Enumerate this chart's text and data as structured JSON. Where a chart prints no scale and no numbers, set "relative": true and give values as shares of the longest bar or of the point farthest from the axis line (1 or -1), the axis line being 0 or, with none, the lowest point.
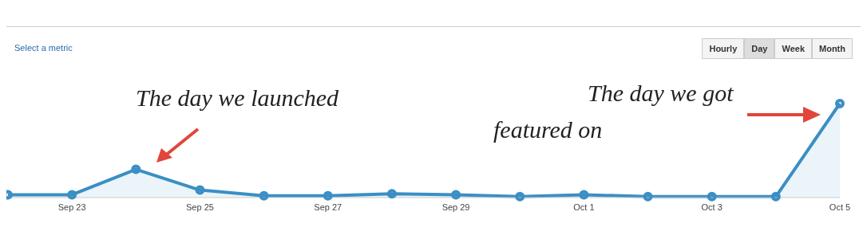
{
  "chart_data": {
    "type": "area",
    "relative": true,
    "marker": "circle",
    "categories": [
      null,
      "Sep 23",
      null,
      "Sep 25",
      null,
      "Sep 27",
      null,
      "Sep 29",
      null,
      "Oct 1",
      null,
      "Oct 3",
      null,
      "Oct 5"
    ],
    "series": [
      {
        "color": "#3a8fc4",
        "values": [
          0.03,
          0.03,
          0.3,
          0.08,
          0.02,
          0.02,
          0.04,
          0.03,
          0.01,
          0.03,
          0.01,
          0.01,
          0.01,
          1
        ]
      }
    ],
    "annotations": [
      "The day we launched",
      "The day we got featured on",
      "Select a metric",
      "Hourly",
      "Day",
      "Week",
      "Month"
    ]
  }
}
